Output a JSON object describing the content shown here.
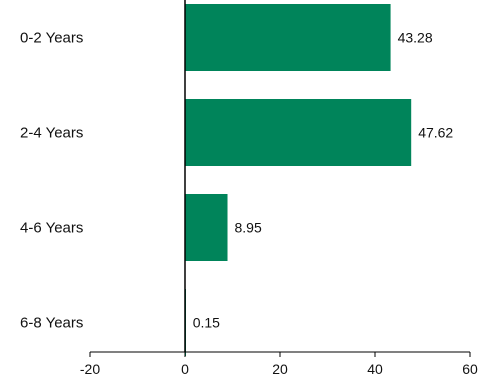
{
  "chart_data": {
    "type": "bar",
    "orientation": "horizontal",
    "categories": [
      "0-2 Years",
      "2-4 Years",
      "4-6 Years",
      "6-8 Years"
    ],
    "values": [
      43.28,
      47.62,
      8.95,
      0.15
    ],
    "value_labels": [
      "43.28",
      "47.62",
      "8.95",
      "0.15"
    ],
    "xlim": [
      -20,
      60
    ],
    "xticks": [
      -20,
      0,
      20,
      40,
      60
    ],
    "xtick_labels": [
      "-20",
      "0",
      "20",
      "40",
      "60"
    ],
    "title": "",
    "xlabel": "",
    "ylabel": "",
    "grid": false,
    "bar_color": "#00845A"
  }
}
